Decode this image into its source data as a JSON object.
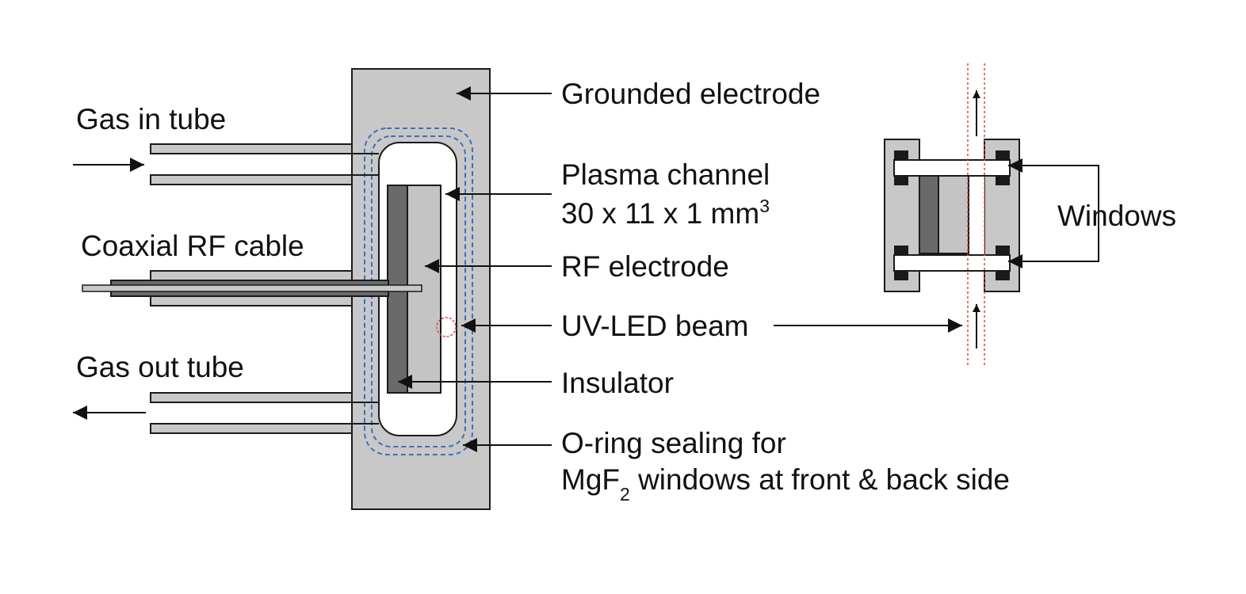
{
  "diagram": {
    "labels": {
      "gas_in_tube": "Gas in tube",
      "coaxial_rf_cable": "Coaxial RF cable",
      "gas_out_tube": "Gas out tube",
      "grounded_electrode": "Grounded electrode",
      "plasma_channel_line1": "Plasma channel",
      "plasma_channel_dims": "30 x 11 x 1 mm",
      "plasma_channel_exponent": "3",
      "rf_electrode": "RF electrode",
      "uv_led_beam": "UV-LED beam",
      "insulator": "Insulator",
      "oring_line1": "O-ring sealing for",
      "oring_line2_prefix": "MgF",
      "oring_line2_subscript": "2",
      "oring_line2_suffix": " windows at front & back side",
      "windows": "Windows"
    },
    "colors": {
      "housing_fill": "#c8c8c8",
      "outline": "#1a1a1a",
      "insulator_fill": "#6a6a6a",
      "electrode_fill": "#c4c4c4",
      "oring_dashed": "#3a70c0",
      "beam_dotted": "#e04040",
      "window_fill": "#ffffff",
      "clamp_fill": "#1a1a1a"
    }
  }
}
